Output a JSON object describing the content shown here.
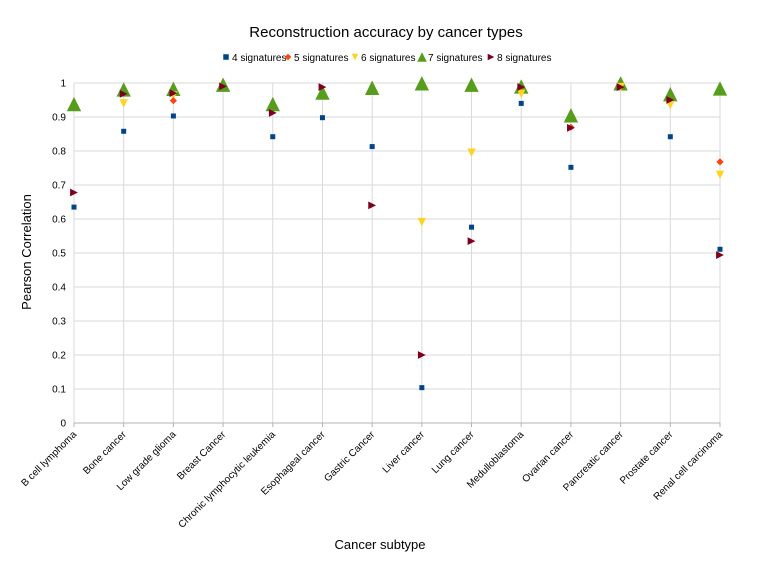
{
  "chart_data": {
    "type": "scatter",
    "title": "Reconstruction accuracy by cancer types",
    "xlabel": "Cancer subtype",
    "ylabel": "Pearson Correlation",
    "ylim": [
      0,
      1
    ],
    "yticks": [
      "0",
      "0.1",
      "0.2",
      "0.3",
      "0.4",
      "0.5",
      "0.6",
      "0.7",
      "0.8",
      "0.9",
      "1"
    ],
    "grid": true,
    "legend_position": "top",
    "categories": [
      "B cell lymphoma",
      "Bone cancer",
      "Low grade glioma",
      "Breast Cancer",
      "Chronic lymphocytic leukemia",
      "Esophageal cancer",
      "Gastric Cancer",
      "Liver cancer",
      "Lung cancer",
      "Medulloblastoma",
      "Ovarian cancer",
      "Pancreatic cancer",
      "Prostate cancer",
      "Renal cell carcinoma"
    ],
    "series": [
      {
        "name": "4 signatures",
        "marker": "square",
        "color": "#004586",
        "values": [
          0.635,
          0.858,
          0.903,
          null,
          0.842,
          0.898,
          0.813,
          0.104,
          0.576,
          0.94,
          0.752,
          null,
          0.842,
          0.511
        ]
      },
      {
        "name": "5 signatures",
        "marker": "diamond",
        "color": "#ff420e",
        "values": [
          null,
          null,
          0.948,
          null,
          null,
          null,
          null,
          null,
          null,
          null,
          0.87,
          null,
          null,
          0.768
        ]
      },
      {
        "name": "6 signatures",
        "marker": "triangle-down",
        "color": "#ffd320",
        "values": [
          null,
          0.94,
          0.963,
          null,
          null,
          null,
          null,
          0.591,
          0.795,
          0.968,
          null,
          0.988,
          0.935,
          0.73
        ]
      },
      {
        "name": "7 signatures",
        "marker": "triangle-up",
        "color": "#579d1c",
        "values": [
          0.938,
          0.981,
          0.983,
          0.995,
          0.938,
          0.972,
          0.986,
          0.999,
          0.995,
          0.99,
          0.905,
          0.999,
          0.967,
          0.984
        ]
      },
      {
        "name": "8 signatures",
        "marker": "triangle-right",
        "color": "#7e0021",
        "values": [
          0.678,
          0.968,
          0.97,
          0.99,
          0.912,
          0.988,
          0.64,
          0.2,
          0.535,
          0.988,
          0.868,
          0.988,
          0.95,
          0.494
        ]
      }
    ]
  }
}
